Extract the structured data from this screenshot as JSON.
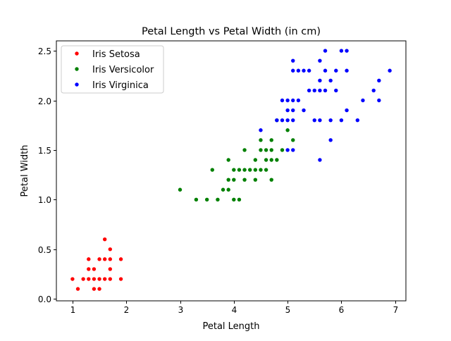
{
  "chart_data": {
    "type": "scatter",
    "title": "Petal Length vs Petal Width (in cm)",
    "xlabel": "Petal Length",
    "ylabel": "Petal Width",
    "xlim": [
      0.7,
      7.2
    ],
    "ylim": [
      -0.02,
      2.6
    ],
    "xticks": [
      1,
      2,
      3,
      4,
      5,
      6,
      7
    ],
    "xtick_labels": [
      "1",
      "2",
      "3",
      "4",
      "5",
      "6",
      "7"
    ],
    "yticks": [
      0.0,
      0.5,
      1.0,
      1.5,
      2.0,
      2.5
    ],
    "ytick_labels": [
      "0.0",
      "0.5",
      "1.0",
      "1.5",
      "2.0",
      "2.5"
    ],
    "grid": false,
    "legend_position": "upper-left",
    "series": [
      {
        "name": "Iris Setosa",
        "color": "#ff0000",
        "points": [
          [
            1.0,
            0.2
          ],
          [
            1.1,
            0.1
          ],
          [
            1.2,
            0.2
          ],
          [
            1.3,
            0.2
          ],
          [
            1.3,
            0.3
          ],
          [
            1.3,
            0.4
          ],
          [
            1.4,
            0.1
          ],
          [
            1.4,
            0.2
          ],
          [
            1.4,
            0.3
          ],
          [
            1.5,
            0.1
          ],
          [
            1.5,
            0.2
          ],
          [
            1.5,
            0.4
          ],
          [
            1.6,
            0.2
          ],
          [
            1.6,
            0.4
          ],
          [
            1.6,
            0.6
          ],
          [
            1.7,
            0.2
          ],
          [
            1.7,
            0.3
          ],
          [
            1.7,
            0.4
          ],
          [
            1.7,
            0.5
          ],
          [
            1.9,
            0.2
          ],
          [
            1.9,
            0.4
          ]
        ]
      },
      {
        "name": "Iris Versicolor",
        "color": "#008000",
        "points": [
          [
            3.0,
            1.1
          ],
          [
            3.3,
            1.0
          ],
          [
            3.5,
            1.0
          ],
          [
            3.6,
            1.3
          ],
          [
            3.7,
            1.0
          ],
          [
            3.8,
            1.1
          ],
          [
            3.9,
            1.1
          ],
          [
            3.9,
            1.2
          ],
          [
            3.9,
            1.4
          ],
          [
            4.0,
            1.0
          ],
          [
            4.0,
            1.2
          ],
          [
            4.0,
            1.3
          ],
          [
            4.1,
            1.0
          ],
          [
            4.1,
            1.3
          ],
          [
            4.2,
            1.2
          ],
          [
            4.2,
            1.3
          ],
          [
            4.2,
            1.5
          ],
          [
            4.3,
            1.3
          ],
          [
            4.4,
            1.2
          ],
          [
            4.4,
            1.3
          ],
          [
            4.4,
            1.4
          ],
          [
            4.5,
            1.3
          ],
          [
            4.5,
            1.5
          ],
          [
            4.5,
            1.6
          ],
          [
            4.6,
            1.3
          ],
          [
            4.6,
            1.4
          ],
          [
            4.6,
            1.5
          ],
          [
            4.7,
            1.2
          ],
          [
            4.7,
            1.4
          ],
          [
            4.7,
            1.5
          ],
          [
            4.7,
            1.6
          ],
          [
            4.8,
            1.4
          ],
          [
            4.8,
            1.8
          ],
          [
            4.9,
            1.5
          ],
          [
            5.0,
            1.7
          ],
          [
            5.1,
            1.6
          ]
        ]
      },
      {
        "name": "Iris Virginica",
        "color": "#0000ff",
        "points": [
          [
            4.5,
            1.7
          ],
          [
            4.8,
            1.8
          ],
          [
            4.9,
            1.8
          ],
          [
            4.9,
            2.0
          ],
          [
            5.0,
            1.5
          ],
          [
            5.0,
            1.8
          ],
          [
            5.0,
            1.9
          ],
          [
            5.0,
            2.0
          ],
          [
            5.1,
            1.5
          ],
          [
            5.1,
            1.8
          ],
          [
            5.1,
            1.9
          ],
          [
            5.1,
            2.0
          ],
          [
            5.1,
            2.3
          ],
          [
            5.1,
            2.4
          ],
          [
            5.2,
            2.0
          ],
          [
            5.2,
            2.3
          ],
          [
            5.3,
            1.9
          ],
          [
            5.3,
            2.3
          ],
          [
            5.4,
            2.1
          ],
          [
            5.4,
            2.3
          ],
          [
            5.5,
            1.8
          ],
          [
            5.5,
            2.1
          ],
          [
            5.6,
            1.4
          ],
          [
            5.6,
            1.8
          ],
          [
            5.6,
            2.1
          ],
          [
            5.6,
            2.2
          ],
          [
            5.6,
            2.4
          ],
          [
            5.7,
            2.1
          ],
          [
            5.7,
            2.3
          ],
          [
            5.7,
            2.5
          ],
          [
            5.8,
            1.6
          ],
          [
            5.8,
            1.8
          ],
          [
            5.8,
            2.2
          ],
          [
            5.9,
            2.1
          ],
          [
            5.9,
            2.3
          ],
          [
            6.0,
            1.8
          ],
          [
            6.0,
            2.5
          ],
          [
            6.1,
            1.9
          ],
          [
            6.1,
            2.3
          ],
          [
            6.1,
            2.5
          ],
          [
            6.3,
            1.8
          ],
          [
            6.4,
            2.0
          ],
          [
            6.6,
            2.1
          ],
          [
            6.7,
            2.0
          ],
          [
            6.7,
            2.2
          ],
          [
            6.9,
            2.3
          ]
        ]
      }
    ]
  }
}
